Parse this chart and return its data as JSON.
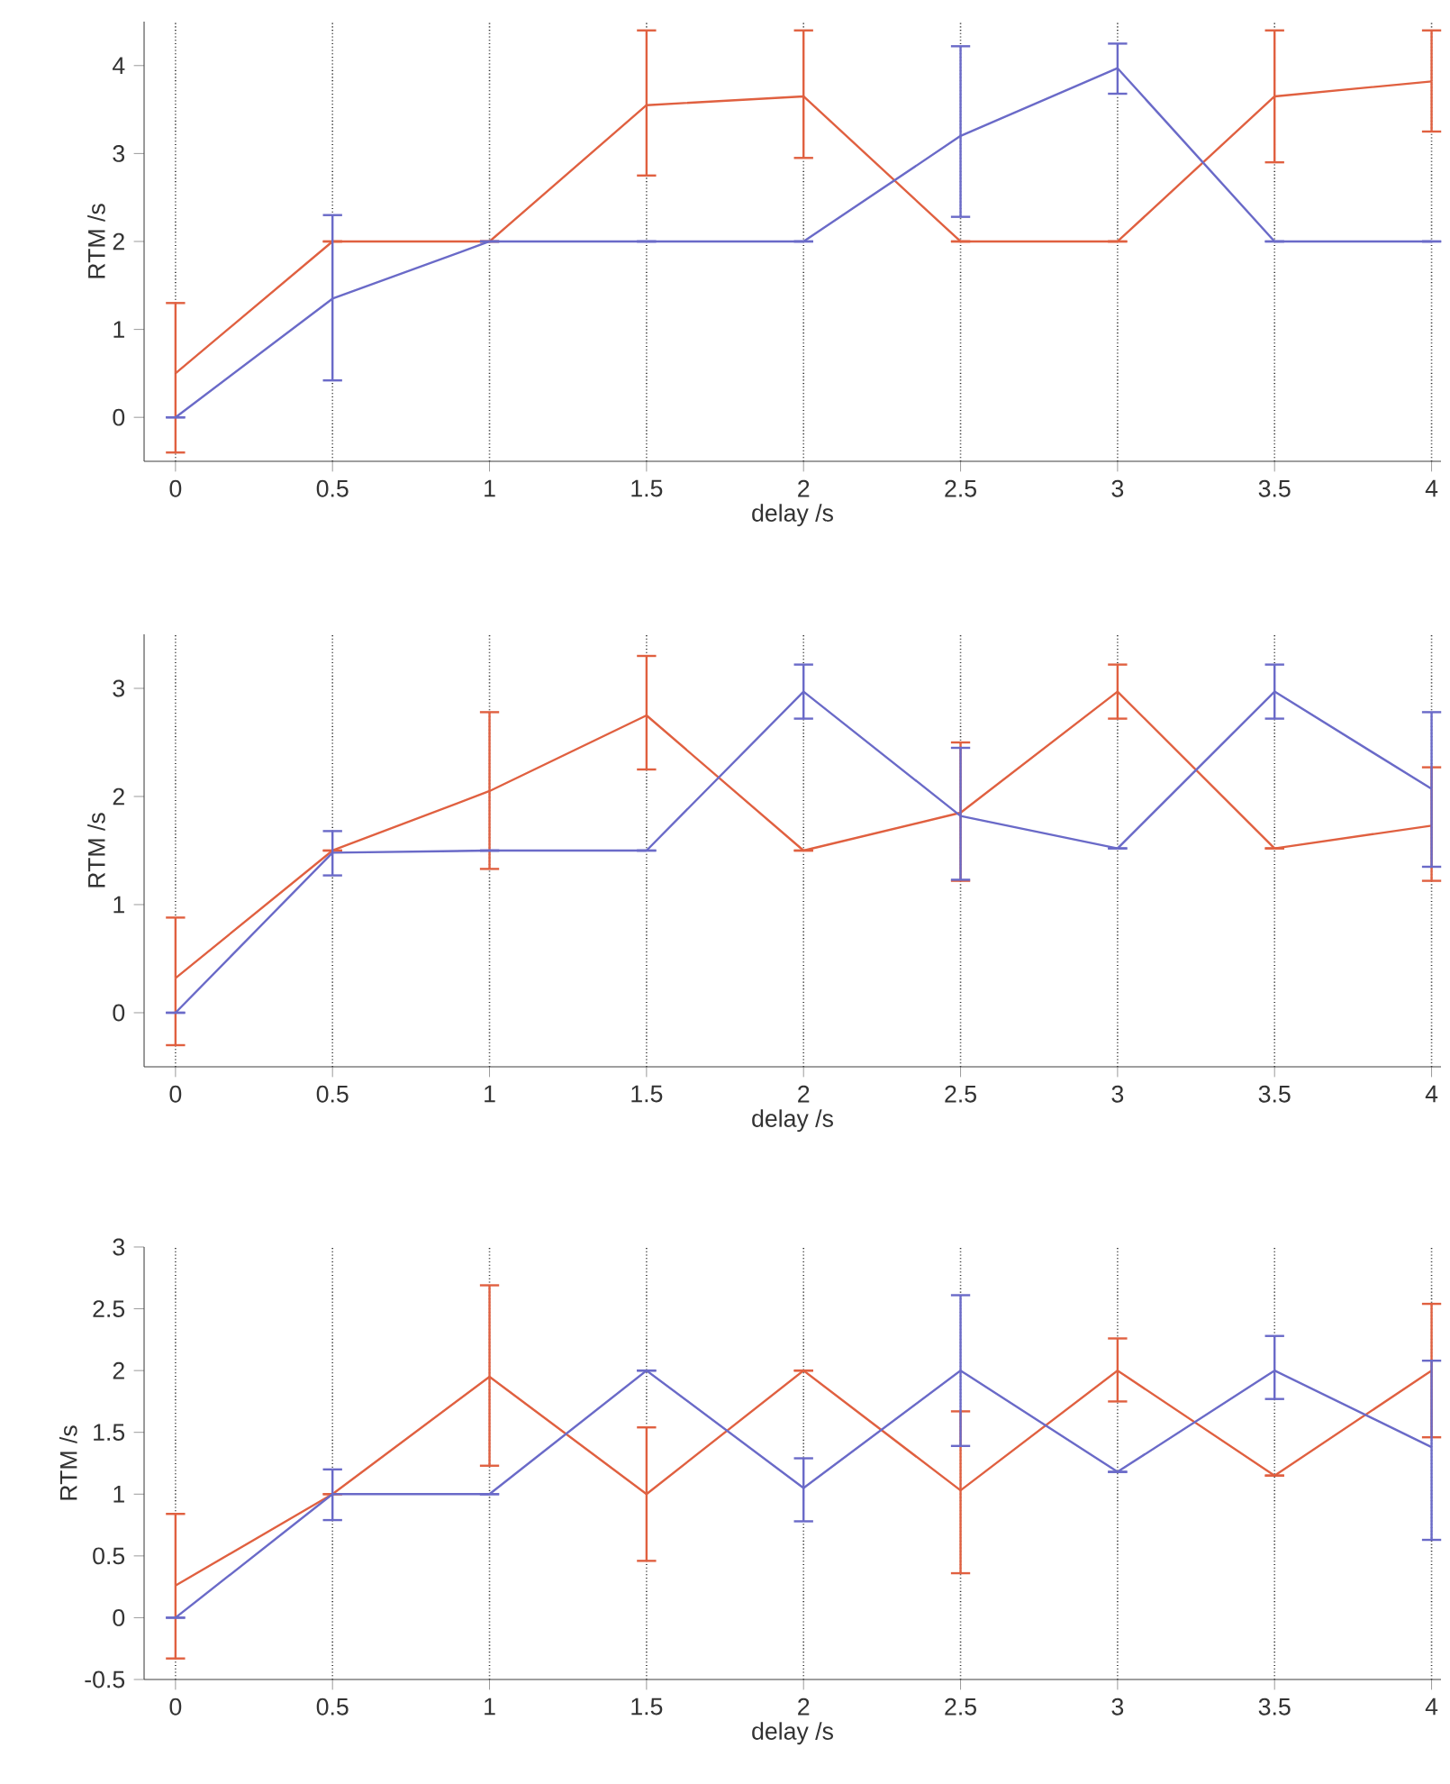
{
  "chart_data": [
    {
      "type": "line",
      "x": [
        0,
        0.5,
        1,
        1.5,
        2,
        2.5,
        3,
        3.5,
        4
      ],
      "xlabel": "delay /s",
      "ylabel": "RTM /s",
      "xlim": [
        -0.1,
        4.03
      ],
      "ylim": [
        -0.5,
        4.5
      ],
      "xticks": [
        0,
        0.5,
        1,
        1.5,
        2,
        2.5,
        3,
        3.5,
        4
      ],
      "yticks": [
        0,
        1,
        2,
        3,
        4
      ],
      "grid": "x",
      "series": [
        {
          "color": "#e06040",
          "values": [
            0.5,
            2,
            2,
            3.55,
            3.65,
            2,
            2,
            3.65,
            3.82
          ],
          "errors": [
            [
              -0.4,
              1.3
            ],
            null,
            null,
            [
              2.75,
              4.4
            ],
            [
              2.95,
              4.4
            ],
            null,
            null,
            [
              2.9,
              4.4
            ],
            [
              3.25,
              4.4
            ]
          ]
        },
        {
          "color": "#6a6ac8",
          "values": [
            0,
            1.35,
            2,
            2,
            2,
            3.2,
            3.97,
            2,
            2
          ],
          "errors": [
            null,
            [
              0.42,
              2.3
            ],
            null,
            null,
            null,
            [
              2.28,
              4.22
            ],
            [
              3.68,
              4.25
            ],
            null,
            null
          ]
        }
      ]
    },
    {
      "type": "line",
      "x": [
        0,
        0.5,
        1,
        1.5,
        2,
        2.5,
        3,
        3.5,
        4
      ],
      "xlabel": "delay /s",
      "ylabel": "RTM /s",
      "xlim": [
        -0.1,
        4.03
      ],
      "ylim": [
        -0.5,
        3.5
      ],
      "xticks": [
        0,
        0.5,
        1,
        1.5,
        2,
        2.5,
        3,
        3.5,
        4
      ],
      "yticks": [
        0,
        1,
        2,
        3
      ],
      "grid": "x",
      "series": [
        {
          "color": "#e06040",
          "values": [
            0.32,
            1.5,
            2.05,
            2.75,
            1.5,
            1.85,
            2.97,
            1.52,
            1.73
          ],
          "errors": [
            [
              -0.3,
              0.88
            ],
            null,
            [
              1.33,
              2.78
            ],
            [
              2.25,
              3.3
            ],
            null,
            [
              1.22,
              2.5
            ],
            [
              2.72,
              3.22
            ],
            null,
            [
              1.22,
              2.27
            ]
          ]
        },
        {
          "color": "#6a6ac8",
          "values": [
            0,
            1.48,
            1.5,
            1.5,
            2.97,
            1.82,
            1.52,
            2.97,
            2.07
          ],
          "errors": [
            null,
            [
              1.27,
              1.68
            ],
            null,
            null,
            [
              2.72,
              3.22
            ],
            [
              1.23,
              2.45
            ],
            null,
            [
              2.72,
              3.22
            ],
            [
              1.35,
              2.78
            ]
          ]
        }
      ]
    },
    {
      "type": "line",
      "x": [
        0,
        0.5,
        1,
        1.5,
        2,
        2.5,
        3,
        3.5,
        4
      ],
      "xlabel": "delay /s",
      "ylabel": "RTM /s",
      "xlim": [
        -0.1,
        4.03
      ],
      "ylim": [
        -0.5,
        3
      ],
      "xticks": [
        0,
        0.5,
        1,
        1.5,
        2,
        2.5,
        3,
        3.5,
        4
      ],
      "yticks": [
        -0.5,
        0,
        0.5,
        1,
        1.5,
        2,
        2.5,
        3
      ],
      "grid": "x",
      "series": [
        {
          "color": "#e06040",
          "values": [
            0.26,
            1.0,
            1.95,
            1.0,
            2.0,
            1.03,
            2.0,
            1.15,
            2.0
          ],
          "errors": [
            [
              -0.33,
              0.84
            ],
            null,
            [
              1.23,
              2.69
            ],
            [
              0.46,
              1.54
            ],
            null,
            [
              0.36,
              1.67
            ],
            [
              1.75,
              2.26
            ],
            null,
            [
              1.46,
              2.54
            ]
          ]
        },
        {
          "color": "#6a6ac8",
          "values": [
            0,
            1.0,
            1.0,
            2.0,
            1.05,
            2.0,
            1.18,
            2.0,
            1.38
          ],
          "errors": [
            null,
            [
              0.79,
              1.2
            ],
            null,
            null,
            [
              0.78,
              1.29
            ],
            [
              1.39,
              2.61
            ],
            null,
            [
              1.77,
              2.28
            ],
            [
              0.63,
              2.08
            ]
          ]
        }
      ]
    }
  ]
}
